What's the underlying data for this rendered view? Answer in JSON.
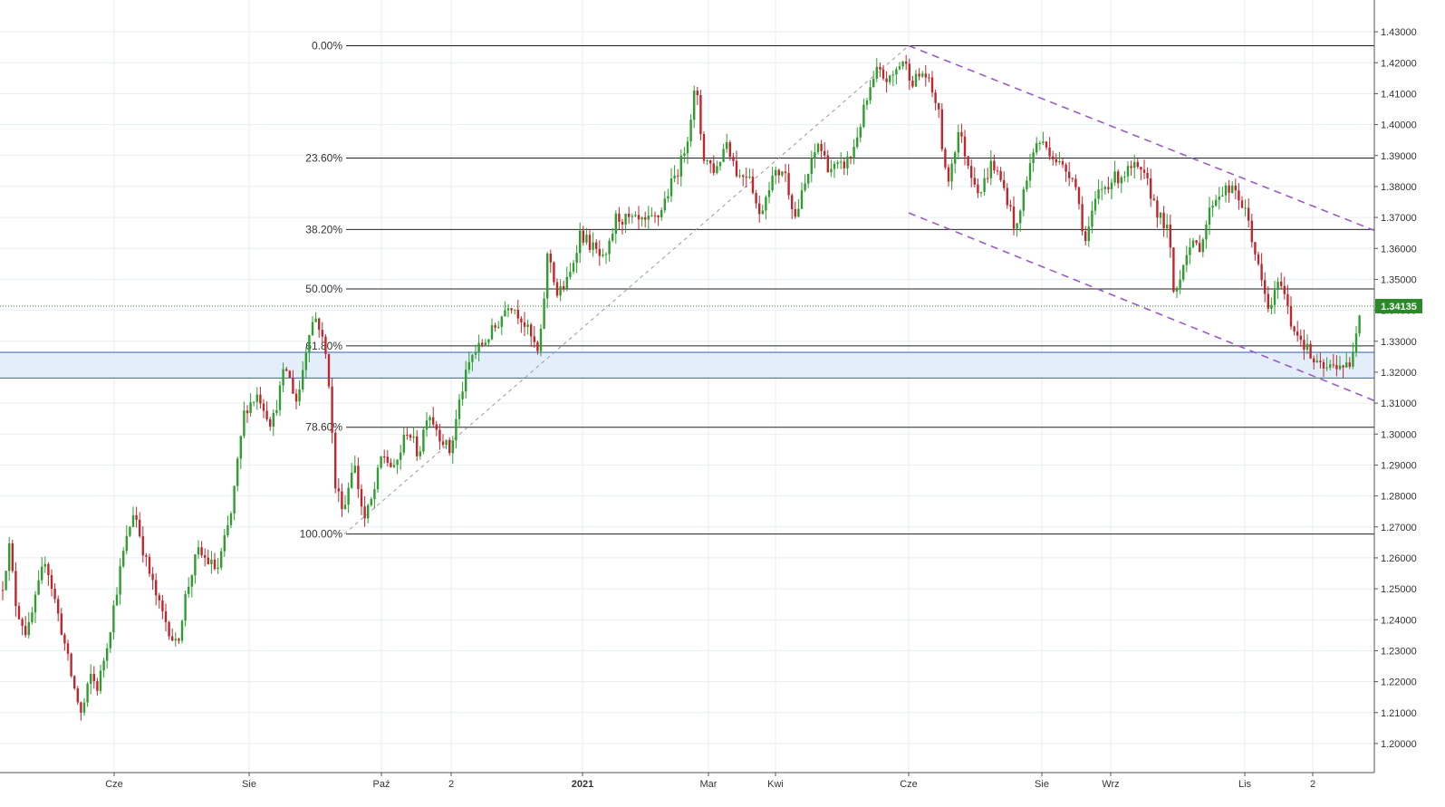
{
  "chart_data": {
    "type": "candlestick",
    "instrument_price_label": "1.34135",
    "last_price": 1.34135,
    "ylim": [
      1.195,
      1.435
    ],
    "y_ticks": [
      "1.20000",
      "1.21000",
      "1.22000",
      "1.23000",
      "1.24000",
      "1.25000",
      "1.26000",
      "1.27000",
      "1.28000",
      "1.29000",
      "1.30000",
      "1.31000",
      "1.32000",
      "1.33000",
      "1.34000",
      "1.35000",
      "1.36000",
      "1.37000",
      "1.38000",
      "1.39000",
      "1.40000",
      "1.41000",
      "1.42000",
      "1.43000"
    ],
    "x_ticks": [
      {
        "label": "Cze",
        "bold": false
      },
      {
        "label": "Sie",
        "bold": false
      },
      {
        "label": "Paź",
        "bold": false
      },
      {
        "label": "2",
        "bold": false
      },
      {
        "label": "2021",
        "bold": true
      },
      {
        "label": "Mar",
        "bold": false
      },
      {
        "label": "Kwi",
        "bold": false
      },
      {
        "label": "Cze",
        "bold": false
      },
      {
        "label": "Sie",
        "bold": false
      },
      {
        "label": "Wrz",
        "bold": false
      },
      {
        "label": "Lis",
        "bold": false
      },
      {
        "label": "2",
        "bold": false
      }
    ],
    "fibonacci": [
      {
        "label": "0.00%",
        "price": 1.4255
      },
      {
        "label": "23.60%",
        "price": 1.3892
      },
      {
        "label": "38.20%",
        "price": 1.3661
      },
      {
        "label": "50.00%",
        "price": 1.3469
      },
      {
        "label": "61.80%",
        "price": 1.3285
      },
      {
        "label": "78.60%",
        "price": 1.3022
      },
      {
        "label": "100.00%",
        "price": 1.2677
      }
    ],
    "support_zone": {
      "top": 1.3264,
      "bottom": 1.3181,
      "fill": "#e3eefa",
      "stroke": "#3a5fb0"
    },
    "trend_channel": {
      "upper": {
        "start": 1.4255,
        "end": 1.3658
      },
      "lower": {
        "start": 1.3715,
        "end": 1.3108
      },
      "color": "#9b59c6"
    },
    "uptrend_line": {
      "start": 1.2677,
      "end": 1.4255,
      "color": "#9a9a9a"
    },
    "colors": {
      "up": "#2e9e2e",
      "down": "#c0262d",
      "grid": "#e6eef4",
      "axis_text": "#333333",
      "price_tag": "#2a8a2a"
    },
    "waypoints": [
      [
        0,
        1.246
      ],
      [
        10,
        1.264
      ],
      [
        18,
        1.244
      ],
      [
        30,
        1.235
      ],
      [
        50,
        1.26
      ],
      [
        70,
        1.234
      ],
      [
        80,
        1.22
      ],
      [
        90,
        1.209
      ],
      [
        100,
        1.222
      ],
      [
        108,
        1.218
      ],
      [
        120,
        1.235
      ],
      [
        135,
        1.26
      ],
      [
        148,
        1.276
      ],
      [
        160,
        1.26
      ],
      [
        175,
        1.245
      ],
      [
        185,
        1.238
      ],
      [
        195,
        1.231
      ],
      [
        205,
        1.248
      ],
      [
        218,
        1.262
      ],
      [
        240,
        1.256
      ],
      [
        255,
        1.274
      ],
      [
        270,
        1.308
      ],
      [
        285,
        1.313
      ],
      [
        300,
        1.303
      ],
      [
        315,
        1.322
      ],
      [
        328,
        1.31
      ],
      [
        342,
        1.335
      ],
      [
        350,
        1.338
      ],
      [
        362,
        1.322
      ],
      [
        370,
        1.283
      ],
      [
        380,
        1.276
      ],
      [
        390,
        1.292
      ],
      [
        402,
        1.272
      ],
      [
        412,
        1.28
      ],
      [
        422,
        1.294
      ],
      [
        435,
        1.288
      ],
      [
        450,
        1.302
      ],
      [
        462,
        1.293
      ],
      [
        472,
        1.308
      ],
      [
        485,
        1.3
      ],
      [
        497,
        1.294
      ],
      [
        508,
        1.312
      ],
      [
        520,
        1.325
      ],
      [
        535,
        1.33
      ],
      [
        548,
        1.335
      ],
      [
        562,
        1.343
      ],
      [
        575,
        1.338
      ],
      [
        588,
        1.33
      ],
      [
        595,
        1.325
      ],
      [
        605,
        1.36
      ],
      [
        615,
        1.345
      ],
      [
        628,
        1.35
      ],
      [
        640,
        1.365
      ],
      [
        655,
        1.36
      ],
      [
        668,
        1.355
      ],
      [
        680,
        1.37
      ],
      [
        695,
        1.369
      ],
      [
        712,
        1.368
      ],
      [
        726,
        1.37
      ],
      [
        740,
        1.38
      ],
      [
        752,
        1.388
      ],
      [
        760,
        1.398
      ],
      [
        768,
        1.413
      ],
      [
        776,
        1.39
      ],
      [
        790,
        1.385
      ],
      [
        802,
        1.395
      ],
      [
        815,
        1.383
      ],
      [
        827,
        1.385
      ],
      [
        838,
        1.37
      ],
      [
        850,
        1.382
      ],
      [
        865,
        1.386
      ],
      [
        878,
        1.37
      ],
      [
        890,
        1.382
      ],
      [
        903,
        1.394
      ],
      [
        915,
        1.386
      ],
      [
        928,
        1.386
      ],
      [
        940,
        1.39
      ],
      [
        955,
        1.406
      ],
      [
        968,
        1.417
      ],
      [
        982,
        1.414
      ],
      [
        996,
        1.421
      ],
      [
        1008,
        1.414
      ],
      [
        1020,
        1.417
      ],
      [
        1035,
        1.406
      ],
      [
        1045,
        1.38
      ],
      [
        1058,
        1.398
      ],
      [
        1070,
        1.386
      ],
      [
        1082,
        1.378
      ],
      [
        1095,
        1.388
      ],
      [
        1110,
        1.378
      ],
      [
        1122,
        1.365
      ],
      [
        1132,
        1.382
      ],
      [
        1145,
        1.395
      ],
      [
        1158,
        1.392
      ],
      [
        1172,
        1.386
      ],
      [
        1185,
        1.384
      ],
      [
        1198,
        1.362
      ],
      [
        1212,
        1.378
      ],
      [
        1226,
        1.382
      ],
      [
        1240,
        1.384
      ],
      [
        1252,
        1.386
      ],
      [
        1265,
        1.382
      ],
      [
        1280,
        1.37
      ],
      [
        1290,
        1.365
      ],
      [
        1296,
        1.344
      ],
      [
        1310,
        1.36
      ],
      [
        1325,
        1.361
      ],
      [
        1338,
        1.375
      ],
      [
        1350,
        1.379
      ],
      [
        1365,
        1.378
      ],
      [
        1378,
        1.369
      ],
      [
        1390,
        1.352
      ],
      [
        1400,
        1.34
      ],
      [
        1414,
        1.35
      ],
      [
        1425,
        1.336
      ],
      [
        1440,
        1.329
      ],
      [
        1452,
        1.322
      ],
      [
        1465,
        1.321
      ],
      [
        1478,
        1.323
      ],
      [
        1490,
        1.321
      ],
      [
        1500,
        1.34
      ],
      [
        1503,
        1.3414
      ]
    ]
  }
}
